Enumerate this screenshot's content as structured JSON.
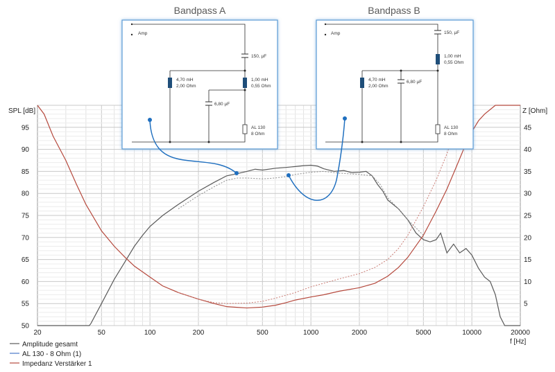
{
  "titles": {
    "left": "Bandpass A",
    "right": "Bandpass B"
  },
  "schematic_a": {
    "amp": "Amp",
    "c_series": "150, µF",
    "l_shunt": [
      "4,70 mH",
      "2,00 Ohm"
    ],
    "l_series": [
      "1,00 mH",
      "0,55 Ohm"
    ],
    "c_shunt": "6,80 µF",
    "speaker": [
      "AL 130",
      "8 Ohm"
    ]
  },
  "schematic_b": {
    "amp": "Amp",
    "c_series": "150, µF",
    "l_series": [
      "1,00 mH",
      "0,55 Ohm"
    ],
    "l_shunt": [
      "4,70 mH",
      "2,00 Ohm"
    ],
    "c_shunt": "6,80 µF",
    "speaker": [
      "AL 130",
      "8 Ohm"
    ]
  },
  "chart_data": {
    "type": "line",
    "xlabel": "f [Hz]",
    "ylabel_left": "SPL [dB]",
    "ylabel_right": "Z [Ohm]",
    "xscale": "log",
    "xlim": [
      20,
      20000
    ],
    "ylim_left": [
      50,
      100
    ],
    "ylim_right": [
      0,
      50
    ],
    "x_ticks": [
      20,
      50,
      100,
      200,
      500,
      1000,
      2000,
      5000,
      10000,
      20000
    ],
    "x_tick_labels": [
      "20",
      "50",
      "100",
      "200",
      "500",
      "1000",
      "2000",
      "5000",
      "10000",
      "20000"
    ],
    "y_left_ticks": [
      50,
      55,
      60,
      65,
      70,
      75,
      80,
      85,
      90,
      95
    ],
    "y_right_ticks": [
      5,
      10,
      15,
      20,
      25,
      30,
      35,
      40,
      45
    ],
    "y_right_tick_labels": [
      "5",
      "10",
      "15",
      "20",
      "25",
      "30",
      "35",
      "40",
      "45"
    ],
    "grid": true,
    "legend_position": "bottom-left",
    "series": [
      {
        "name": "Amplitude gesamt",
        "color": "#595959",
        "dash": false,
        "axis": "left",
        "points": [
          [
            20,
            50
          ],
          [
            42,
            50
          ],
          [
            43,
            50.5
          ],
          [
            50,
            55
          ],
          [
            60,
            60.5
          ],
          [
            70,
            64.5
          ],
          [
            80,
            68
          ],
          [
            90,
            70.5
          ],
          [
            100,
            72.5
          ],
          [
            120,
            75
          ],
          [
            150,
            77.5
          ],
          [
            200,
            80.5
          ],
          [
            250,
            82.5
          ],
          [
            300,
            84
          ],
          [
            350,
            84.5
          ],
          [
            400,
            85
          ],
          [
            450,
            85.5
          ],
          [
            500,
            85.3
          ],
          [
            600,
            85.7
          ],
          [
            700,
            85.9
          ],
          [
            800,
            86.1
          ],
          [
            900,
            86.3
          ],
          [
            1000,
            86.4
          ],
          [
            1100,
            86.2
          ],
          [
            1200,
            85.6
          ],
          [
            1400,
            85
          ],
          [
            1600,
            85.2
          ],
          [
            1800,
            84.7
          ],
          [
            2000,
            84.8
          ],
          [
            2200,
            85
          ],
          [
            2400,
            84
          ],
          [
            2600,
            82
          ],
          [
            2800,
            80.5
          ],
          [
            3000,
            78.5
          ],
          [
            3500,
            76.5
          ],
          [
            4000,
            74
          ],
          [
            4500,
            71
          ],
          [
            5000,
            69.5
          ],
          [
            5500,
            69
          ],
          [
            6000,
            69.5
          ],
          [
            6400,
            71
          ],
          [
            7000,
            66.5
          ],
          [
            7700,
            68.5
          ],
          [
            8400,
            66.5
          ],
          [
            9200,
            67.5
          ],
          [
            10000,
            66
          ],
          [
            11000,
            63
          ],
          [
            12000,
            61
          ],
          [
            13000,
            60
          ],
          [
            14000,
            57
          ],
          [
            15000,
            52
          ],
          [
            16000,
            50
          ],
          [
            20000,
            50
          ]
        ]
      },
      {
        "name": "AL 130 - 8 Ohm (1)",
        "color": "#4a78c8",
        "dash": false,
        "axis": "left",
        "points": []
      },
      {
        "name": "Impedanz Verstärker 1",
        "color": "#b5483c",
        "dash": false,
        "axis": "right",
        "points": [
          [
            20,
            50
          ],
          [
            22,
            48
          ],
          [
            25,
            43
          ],
          [
            30,
            37.5
          ],
          [
            35,
            32
          ],
          [
            40,
            27.5
          ],
          [
            50,
            21.5
          ],
          [
            60,
            18
          ],
          [
            70,
            15.5
          ],
          [
            80,
            13.5
          ],
          [
            100,
            11
          ],
          [
            120,
            9
          ],
          [
            150,
            7.5
          ],
          [
            200,
            6
          ],
          [
            250,
            5
          ],
          [
            300,
            4.3
          ],
          [
            400,
            4
          ],
          [
            500,
            4.2
          ],
          [
            600,
            4.6
          ],
          [
            700,
            5.2
          ],
          [
            800,
            5.8
          ],
          [
            1000,
            6.5
          ],
          [
            1200,
            7
          ],
          [
            1500,
            7.8
          ],
          [
            2000,
            8.6
          ],
          [
            2500,
            9.6
          ],
          [
            3000,
            11.2
          ],
          [
            3500,
            13.2
          ],
          [
            4000,
            15.5
          ],
          [
            5000,
            20.5
          ],
          [
            6000,
            26
          ],
          [
            7000,
            31
          ],
          [
            8000,
            36
          ],
          [
            9000,
            40.5
          ],
          [
            10000,
            44
          ],
          [
            11000,
            46.5
          ],
          [
            12000,
            48
          ],
          [
            14000,
            50
          ],
          [
            20000,
            50
          ]
        ]
      },
      {
        "name": "",
        "color": "#8a8a8a",
        "dash": true,
        "axis": "left",
        "points": [
          [
            150,
            76.5
          ],
          [
            200,
            79.5
          ],
          [
            250,
            81.5
          ],
          [
            300,
            83
          ],
          [
            350,
            83.5
          ],
          [
            400,
            83.5
          ],
          [
            500,
            83.3
          ],
          [
            600,
            83.5
          ],
          [
            700,
            83.8
          ],
          [
            800,
            84.3
          ],
          [
            1000,
            84.8
          ],
          [
            1200,
            85
          ],
          [
            1500,
            84.6
          ],
          [
            2000,
            84.3
          ],
          [
            2400,
            84
          ],
          [
            2700,
            82
          ],
          [
            3000,
            79
          ],
          [
            3500,
            76.5
          ],
          [
            4000,
            74
          ],
          [
            5000,
            70.5
          ]
        ]
      },
      {
        "name": "",
        "color": "#c97a72",
        "dash": true,
        "axis": "right",
        "points": [
          [
            150,
            7.5
          ],
          [
            200,
            6
          ],
          [
            250,
            5.2
          ],
          [
            300,
            5
          ],
          [
            400,
            5.1
          ],
          [
            500,
            5.5
          ],
          [
            600,
            6.2
          ],
          [
            800,
            7.5
          ],
          [
            1000,
            8.8
          ],
          [
            1500,
            10.6
          ],
          [
            2000,
            11.8
          ],
          [
            2500,
            13.2
          ],
          [
            3000,
            15
          ],
          [
            3500,
            17.5
          ],
          [
            4000,
            20.5
          ],
          [
            5000,
            27
          ],
          [
            6000,
            33
          ],
          [
            7000,
            39
          ],
          [
            8000,
            45
          ],
          [
            9000,
            50
          ]
        ]
      }
    ]
  }
}
